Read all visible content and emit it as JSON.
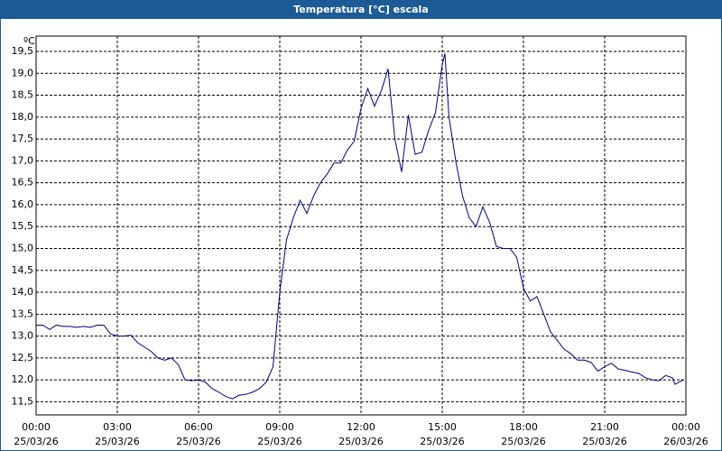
{
  "chart_data": {
    "type": "line",
    "title": "Temperatura [°C] escala",
    "y_unit": "ºC",
    "x": [
      0,
      0.25,
      0.5,
      0.75,
      1,
      1.25,
      1.5,
      1.75,
      2,
      2.25,
      2.5,
      2.75,
      3,
      3.25,
      3.5,
      3.75,
      4,
      4.25,
      4.5,
      4.75,
      5,
      5.25,
      5.5,
      5.75,
      6,
      6.25,
      6.5,
      6.75,
      7,
      7.25,
      7.5,
      7.75,
      8,
      8.25,
      8.5,
      8.75,
      9,
      9.25,
      9.5,
      9.75,
      10,
      10.25,
      10.5,
      10.75,
      11,
      11.25,
      11.5,
      11.75,
      12,
      12.25,
      12.5,
      12.75,
      13,
      13.25,
      13.5,
      13.75,
      14,
      14.25,
      14.5,
      14.75,
      15,
      15.1,
      15.25,
      15.5,
      15.75,
      16,
      16.25,
      16.5,
      16.75,
      17,
      17.25,
      17.5,
      17.75,
      18,
      18.25,
      18.5,
      18.75,
      19,
      19.25,
      19.5,
      19.75,
      20,
      20.25,
      20.5,
      20.75,
      21,
      21.25,
      21.5,
      21.75,
      22,
      22.25,
      22.5,
      22.75,
      23,
      23.25,
      23.5,
      23.6,
      23.9
    ],
    "series": [
      {
        "name": "Temperatura",
        "color": "#000080",
        "values": [
          13.25,
          13.25,
          13.15,
          13.25,
          13.22,
          13.22,
          13.2,
          13.22,
          13.2,
          13.25,
          13.25,
          13.05,
          13.0,
          13.0,
          13.02,
          12.85,
          12.75,
          12.65,
          12.5,
          12.45,
          12.5,
          12.35,
          12.0,
          11.98,
          12.0,
          11.95,
          11.8,
          11.72,
          11.62,
          11.57,
          11.65,
          11.67,
          11.72,
          11.8,
          11.95,
          12.3,
          14.0,
          15.2,
          15.7,
          16.1,
          15.8,
          16.2,
          16.5,
          16.7,
          16.95,
          16.95,
          17.25,
          17.45,
          18.2,
          18.65,
          18.25,
          18.6,
          19.1,
          17.5,
          16.75,
          18.05,
          17.15,
          17.2,
          17.7,
          18.1,
          19.2,
          19.45,
          18.0,
          17.0,
          16.2,
          15.7,
          15.5,
          15.95,
          15.6,
          15.05,
          15.0,
          15.0,
          14.8,
          14.1,
          13.8,
          13.9,
          13.5,
          13.1,
          12.9,
          12.7,
          12.6,
          12.45,
          12.45,
          12.4,
          12.2,
          12.3,
          12.38,
          12.25,
          12.22,
          12.18,
          12.15,
          12.05,
          12.0,
          11.98,
          12.1,
          12.05,
          11.9,
          12.0
        ]
      }
    ],
    "xlim": [
      0,
      24
    ],
    "xticks": [
      {
        "value": 0,
        "label": "00:00"
      },
      {
        "value": 3,
        "label": "03:00"
      },
      {
        "value": 6,
        "label": "06:00"
      },
      {
        "value": 9,
        "label": "09:00"
      },
      {
        "value": 12,
        "label": "12:00"
      },
      {
        "value": 15,
        "label": "15:00"
      },
      {
        "value": 18,
        "label": "18:00"
      },
      {
        "value": 21,
        "label": "21:00"
      },
      {
        "value": 24,
        "label": "00:00"
      }
    ],
    "xtick_dates": [
      "25/03/26",
      "25/03/26",
      "25/03/26",
      "25/03/26",
      "25/03/26",
      "25/03/26",
      "25/03/26",
      "25/03/26",
      "26/03/26"
    ],
    "ylim": [
      11.2,
      19.85
    ],
    "yticks": [
      {
        "value": 11.5,
        "label": "11,5"
      },
      {
        "value": 12,
        "label": "12,0"
      },
      {
        "value": 12.5,
        "label": "12,5"
      },
      {
        "value": 13,
        "label": "13,0"
      },
      {
        "value": 13.5,
        "label": "13,5"
      },
      {
        "value": 14,
        "label": "14,0"
      },
      {
        "value": 14.5,
        "label": "14,5"
      },
      {
        "value": 15,
        "label": "15,0"
      },
      {
        "value": 15.5,
        "label": "15,5"
      },
      {
        "value": 16,
        "label": "16,0"
      },
      {
        "value": 16.5,
        "label": "16,5"
      },
      {
        "value": 17,
        "label": "17,0"
      },
      {
        "value": 17.5,
        "label": "17,5"
      },
      {
        "value": 18,
        "label": "18,0"
      },
      {
        "value": 18.5,
        "label": "18,5"
      },
      {
        "value": 19,
        "label": "19,0"
      },
      {
        "value": 19.5,
        "label": "19,5"
      }
    ],
    "grid": true
  }
}
